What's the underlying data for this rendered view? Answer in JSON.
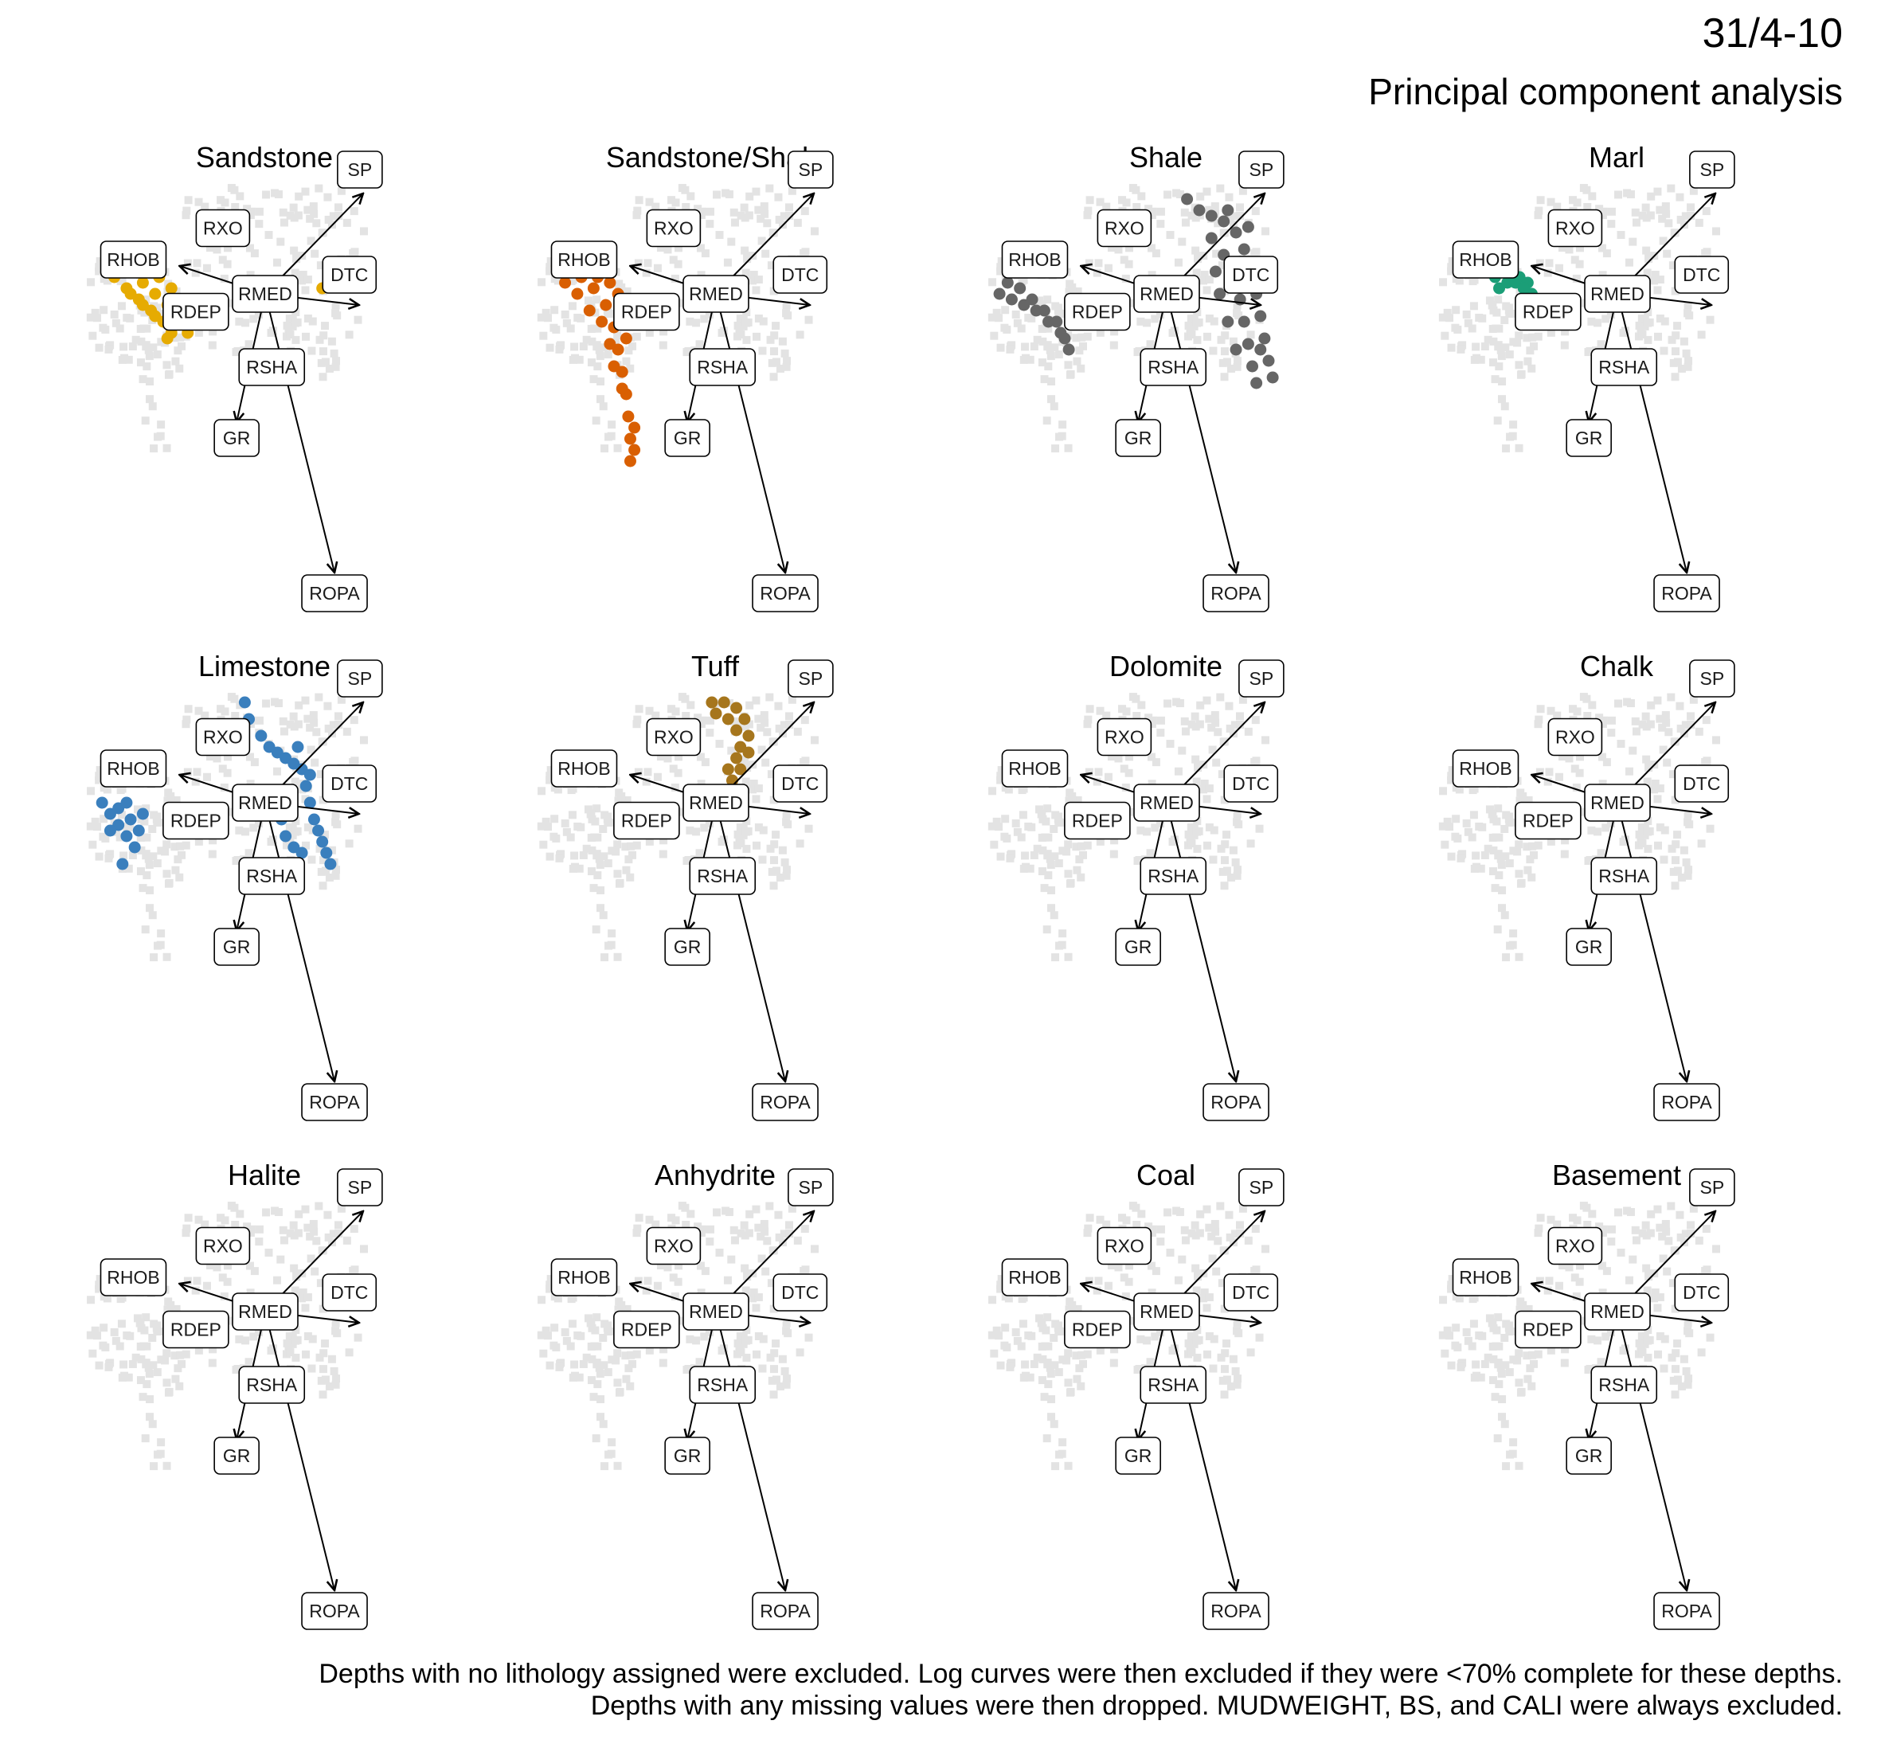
{
  "header": {
    "well": "31/4-10",
    "subtitle": "Principal component analysis"
  },
  "caption": {
    "line1": "Depths with no lithology assigned were excluded. Log curves were then excluded if they were <70% complete for these depths.",
    "line2": "Depths with any missing values were then dropped. MUDWEIGHT, BS, and CALI were always excluded."
  },
  "colors": {
    "background_points": "#e3e3e3",
    "arrows": "#000000",
    "Sandstone": "#e6ab02",
    "Sandstone/Shale": "#d95f02",
    "Shale": "#666666",
    "Marl": "#1b9e77",
    "Limestone": "#3a7fbd",
    "Tuff": "#a6761d"
  },
  "chart_data": {
    "type": "scatter",
    "kind": "PCA biplot facet grid",
    "loadings": [
      {
        "variable": "RHOB",
        "pc1": -0.42,
        "pc2": 0.1
      },
      {
        "variable": "RXO",
        "pc1": -0.02,
        "pc2": 0.03
      },
      {
        "variable": "SP",
        "pc1": 0.48,
        "pc2": 0.36
      },
      {
        "variable": "DTC",
        "pc1": 0.46,
        "pc2": -0.04
      },
      {
        "variable": "RMED",
        "pc1": 0.0,
        "pc2": 0.0
      },
      {
        "variable": "RDEP",
        "pc1": -0.02,
        "pc2": 0.01
      },
      {
        "variable": "RSHA",
        "pc1": 0.04,
        "pc2": -0.04
      },
      {
        "variable": "GR",
        "pc1": -0.14,
        "pc2": -0.46
      },
      {
        "variable": "ROPA",
        "pc1": 0.34,
        "pc2": -1.0
      }
    ],
    "facets": [
      {
        "lithology": "Sandstone",
        "points": [
          [
            -0.78,
            0.12
          ],
          [
            -0.72,
            0.1
          ],
          [
            -0.66,
            0.08
          ],
          [
            -0.6,
            0.04
          ],
          [
            -0.54,
            0.0
          ],
          [
            -0.48,
            -0.04
          ],
          [
            -0.42,
            -0.1
          ],
          [
            -0.38,
            -0.14
          ],
          [
            -0.74,
            0.06
          ],
          [
            -0.68,
            0.02
          ],
          [
            -0.62,
            -0.02
          ],
          [
            -0.56,
            -0.06
          ],
          [
            -0.5,
            -0.1
          ],
          [
            -0.46,
            -0.14
          ],
          [
            -0.7,
            0.12
          ],
          [
            -0.64,
            0.1
          ],
          [
            -0.58,
            0.08
          ],
          [
            -0.52,
            0.06
          ],
          [
            -0.46,
            0.02
          ],
          [
            -0.44,
            -0.04
          ],
          [
            -0.66,
            0.0
          ],
          [
            -0.6,
            -0.04
          ],
          [
            -0.54,
            -0.08
          ],
          [
            -0.48,
            -0.16
          ],
          [
            0.28,
            0.02
          ]
        ]
      },
      {
        "lithology": "Sandstone/Shale",
        "points": [
          [
            -0.78,
            0.1
          ],
          [
            -0.72,
            0.08
          ],
          [
            -0.66,
            0.06
          ],
          [
            -0.6,
            0.02
          ],
          [
            -0.54,
            -0.04
          ],
          [
            -0.5,
            -0.12
          ],
          [
            -0.48,
            -0.2
          ],
          [
            -0.46,
            -0.28
          ],
          [
            -0.44,
            -0.36
          ],
          [
            -0.43,
            -0.44
          ],
          [
            -0.42,
            -0.52
          ],
          [
            -0.42,
            -0.6
          ],
          [
            -0.74,
            0.04
          ],
          [
            -0.68,
            0.0
          ],
          [
            -0.62,
            -0.06
          ],
          [
            -0.56,
            -0.1
          ],
          [
            -0.52,
            -0.18
          ],
          [
            -0.5,
            -0.26
          ],
          [
            -0.46,
            -0.34
          ],
          [
            -0.58,
            0.06
          ],
          [
            -0.52,
            0.04
          ],
          [
            -0.48,
            0.0
          ],
          [
            -0.46,
            -0.08
          ],
          [
            -0.44,
            -0.16
          ],
          [
            -0.4,
            -0.48
          ],
          [
            -0.4,
            -0.56
          ]
        ]
      },
      {
        "lithology": "Shale",
        "points": [
          [
            -0.82,
            0.0
          ],
          [
            -0.76,
            -0.02
          ],
          [
            -0.7,
            -0.04
          ],
          [
            -0.64,
            -0.06
          ],
          [
            -0.58,
            -0.1
          ],
          [
            -0.52,
            -0.14
          ],
          [
            -0.48,
            -0.2
          ],
          [
            -0.78,
            0.04
          ],
          [
            -0.72,
            0.02
          ],
          [
            -0.66,
            -0.02
          ],
          [
            -0.6,
            -0.06
          ],
          [
            -0.54,
            -0.1
          ],
          [
            -0.5,
            -0.16
          ],
          [
            0.1,
            0.34
          ],
          [
            0.16,
            0.3
          ],
          [
            0.22,
            0.28
          ],
          [
            0.28,
            0.26
          ],
          [
            0.34,
            0.22
          ],
          [
            0.38,
            0.16
          ],
          [
            0.42,
            0.08
          ],
          [
            0.44,
            0.0
          ],
          [
            0.46,
            -0.08
          ],
          [
            0.48,
            -0.16
          ],
          [
            0.5,
            -0.24
          ],
          [
            0.52,
            -0.3
          ],
          [
            0.22,
            0.2
          ],
          [
            0.28,
            0.14
          ],
          [
            0.32,
            0.06
          ],
          [
            0.36,
            -0.02
          ],
          [
            0.38,
            -0.1
          ],
          [
            0.4,
            -0.18
          ],
          [
            0.42,
            -0.26
          ],
          [
            0.44,
            -0.32
          ],
          [
            0.24,
            0.08
          ],
          [
            0.26,
            0.0
          ],
          [
            0.3,
            -0.1
          ],
          [
            0.34,
            -0.2
          ],
          [
            0.3,
            0.3
          ],
          [
            0.4,
            0.24
          ],
          [
            0.46,
            -0.2
          ]
        ]
      },
      {
        "lithology": "Marl",
        "points": [
          [
            -0.6,
            0.06
          ],
          [
            -0.56,
            0.08
          ],
          [
            -0.52,
            0.08
          ],
          [
            -0.48,
            0.06
          ],
          [
            -0.44,
            0.04
          ],
          [
            -0.42,
            0.0
          ],
          [
            -0.4,
            -0.04
          ],
          [
            -0.58,
            0.02
          ],
          [
            -0.54,
            0.04
          ],
          [
            -0.5,
            0.04
          ],
          [
            -0.46,
            0.02
          ],
          [
            -0.34,
            -0.06
          ],
          [
            -0.33,
            -0.1
          ]
        ]
      },
      {
        "lithology": "Limestone",
        "points": [
          [
            -0.8,
            0.0
          ],
          [
            -0.76,
            -0.04
          ],
          [
            -0.72,
            -0.08
          ],
          [
            -0.68,
            -0.12
          ],
          [
            -0.64,
            -0.16
          ],
          [
            -0.7,
            -0.22
          ],
          [
            -0.76,
            -0.1
          ],
          [
            -0.72,
            -0.02
          ],
          [
            -0.66,
            -0.06
          ],
          [
            -0.62,
            -0.1
          ],
          [
            -0.6,
            -0.04
          ],
          [
            -0.68,
            0.0
          ],
          [
            -0.1,
            0.36
          ],
          [
            -0.08,
            0.3
          ],
          [
            -0.02,
            0.24
          ],
          [
            0.02,
            0.2
          ],
          [
            0.06,
            0.18
          ],
          [
            0.1,
            0.16
          ],
          [
            0.14,
            0.14
          ],
          [
            0.18,
            0.12
          ],
          [
            0.2,
            0.06
          ],
          [
            0.22,
            0.0
          ],
          [
            0.24,
            -0.06
          ],
          [
            0.26,
            -0.1
          ],
          [
            0.28,
            -0.14
          ],
          [
            0.3,
            -0.18
          ],
          [
            0.32,
            -0.22
          ],
          [
            0.1,
            -0.12
          ],
          [
            0.14,
            -0.16
          ],
          [
            0.18,
            -0.18
          ],
          [
            0.08,
            -0.06
          ],
          [
            0.0,
            0.0
          ],
          [
            -0.04,
            0.04
          ],
          [
            0.16,
            0.2
          ],
          [
            0.22,
            0.1
          ]
        ]
      },
      {
        "lithology": "Tuff",
        "points": [
          [
            -0.02,
            0.36
          ],
          [
            0.04,
            0.36
          ],
          [
            0.1,
            0.34
          ],
          [
            0.14,
            0.3
          ],
          [
            0.16,
            0.24
          ],
          [
            0.16,
            0.18
          ],
          [
            0.12,
            0.12
          ],
          [
            0.08,
            0.08
          ],
          [
            0.04,
            0.04
          ],
          [
            0.0,
            0.32
          ],
          [
            0.06,
            0.3
          ],
          [
            0.1,
            0.26
          ],
          [
            0.12,
            0.2
          ],
          [
            0.1,
            0.16
          ],
          [
            0.06,
            0.12
          ]
        ]
      },
      {
        "lithology": "Dolomite",
        "points": []
      },
      {
        "lithology": "Chalk",
        "points": []
      },
      {
        "lithology": "Halite",
        "points": []
      },
      {
        "lithology": "Anhydrite",
        "points": []
      },
      {
        "lithology": "Coal",
        "points": []
      },
      {
        "lithology": "Basement",
        "points": []
      }
    ]
  }
}
